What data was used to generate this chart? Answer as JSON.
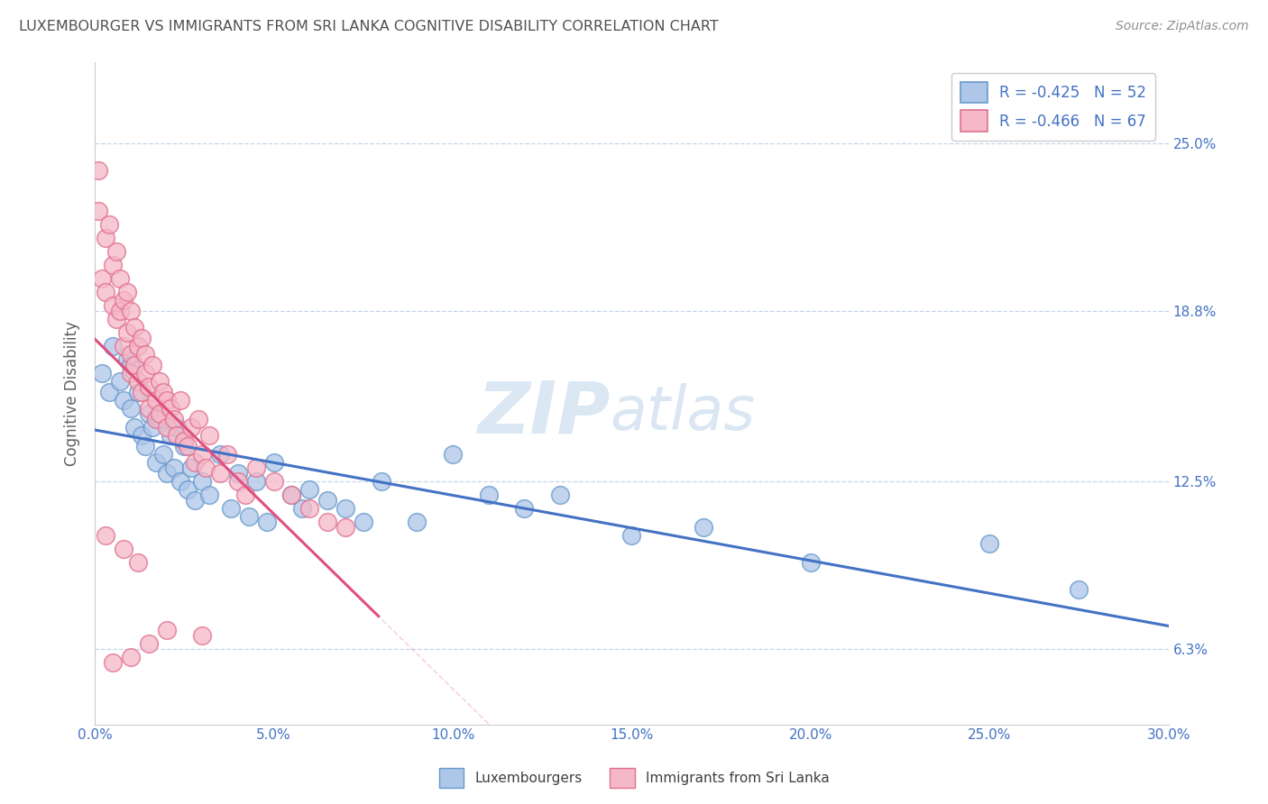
{
  "title": "LUXEMBOURGER VS IMMIGRANTS FROM SRI LANKA COGNITIVE DISABILITY CORRELATION CHART",
  "source_text": "Source: ZipAtlas.com",
  "ylabel": "Cognitive Disability",
  "xlim": [
    0.0,
    30.0
  ],
  "ylim": [
    3.5,
    28.0
  ],
  "yticks": [
    6.3,
    12.5,
    18.8,
    25.0
  ],
  "xticks": [
    0.0,
    5.0,
    10.0,
    15.0,
    20.0,
    25.0,
    30.0
  ],
  "blue_series": {
    "label": "Luxembourgers",
    "R": -0.425,
    "N": 52,
    "color": "#aec6e8",
    "edge_color": "#6699cc",
    "trend_color": "#4472c4",
    "x": [
      0.2,
      0.4,
      0.5,
      0.7,
      0.8,
      0.9,
      1.0,
      1.0,
      1.1,
      1.2,
      1.3,
      1.4,
      1.5,
      1.6,
      1.7,
      1.8,
      1.9,
      2.0,
      2.1,
      2.2,
      2.3,
      2.4,
      2.5,
      2.6,
      2.7,
      2.8,
      3.0,
      3.2,
      3.5,
      3.8,
      4.0,
      4.3,
      4.5,
      4.8,
      5.0,
      5.5,
      5.8,
      6.0,
      6.5,
      7.0,
      7.5,
      8.0,
      9.0,
      10.0,
      11.0,
      12.0,
      13.0,
      15.0,
      17.0,
      20.0,
      25.0,
      27.5
    ],
    "y": [
      16.5,
      15.8,
      17.5,
      16.2,
      15.5,
      17.0,
      16.8,
      15.2,
      14.5,
      15.8,
      14.2,
      13.8,
      15.0,
      14.5,
      13.2,
      14.8,
      13.5,
      12.8,
      14.2,
      13.0,
      14.5,
      12.5,
      13.8,
      12.2,
      13.0,
      11.8,
      12.5,
      12.0,
      13.5,
      11.5,
      12.8,
      11.2,
      12.5,
      11.0,
      13.2,
      12.0,
      11.5,
      12.2,
      11.8,
      11.5,
      11.0,
      12.5,
      11.0,
      13.5,
      12.0,
      11.5,
      12.0,
      10.5,
      10.8,
      9.5,
      10.2,
      8.5
    ]
  },
  "pink_series": {
    "label": "Immigrants from Sri Lanka",
    "R": -0.466,
    "N": 67,
    "color": "#f5b8c8",
    "edge_color": "#e07090",
    "trend_color": "#e05080",
    "trend_solid_xmax": 8.0,
    "x": [
      0.1,
      0.1,
      0.2,
      0.3,
      0.3,
      0.4,
      0.5,
      0.5,
      0.6,
      0.6,
      0.7,
      0.7,
      0.8,
      0.8,
      0.9,
      0.9,
      1.0,
      1.0,
      1.0,
      1.1,
      1.1,
      1.2,
      1.2,
      1.3,
      1.3,
      1.4,
      1.4,
      1.5,
      1.5,
      1.6,
      1.7,
      1.7,
      1.8,
      1.8,
      1.9,
      2.0,
      2.0,
      2.1,
      2.2,
      2.3,
      2.4,
      2.5,
      2.6,
      2.7,
      2.8,
      2.9,
      3.0,
      3.1,
      3.2,
      3.5,
      3.7,
      4.0,
      4.2,
      4.5,
      5.0,
      5.5,
      6.0,
      6.5,
      7.0,
      0.5,
      1.0,
      1.5,
      2.0,
      3.0,
      1.2,
      0.8,
      0.3
    ],
    "y": [
      24.0,
      22.5,
      20.0,
      21.5,
      19.5,
      22.0,
      20.5,
      19.0,
      21.0,
      18.5,
      20.0,
      18.8,
      19.2,
      17.5,
      19.5,
      18.0,
      18.8,
      17.2,
      16.5,
      18.2,
      16.8,
      17.5,
      16.2,
      17.8,
      15.8,
      17.2,
      16.5,
      16.0,
      15.2,
      16.8,
      15.5,
      14.8,
      16.2,
      15.0,
      15.8,
      15.5,
      14.5,
      15.2,
      14.8,
      14.2,
      15.5,
      14.0,
      13.8,
      14.5,
      13.2,
      14.8,
      13.5,
      13.0,
      14.2,
      12.8,
      13.5,
      12.5,
      12.0,
      13.0,
      12.5,
      12.0,
      11.5,
      11.0,
      10.8,
      5.8,
      6.0,
      6.5,
      7.0,
      6.8,
      9.5,
      10.0,
      10.5
    ]
  },
  "legend_items": [
    {
      "label": "R = -0.425   N = 52",
      "face_color": "#aec6e8",
      "edge_color": "#6699cc"
    },
    {
      "label": "R = -0.466   N = 67",
      "face_color": "#f5b8c8",
      "edge_color": "#e07090"
    }
  ],
  "watermark_zip": "ZIP",
  "watermark_atlas": "atlas",
  "background_color": "#ffffff",
  "grid_color": "#b8cce4",
  "title_color": "#505050",
  "axis_label_color": "#606060",
  "tick_label_color": "#4472c4",
  "source_color": "#909090"
}
